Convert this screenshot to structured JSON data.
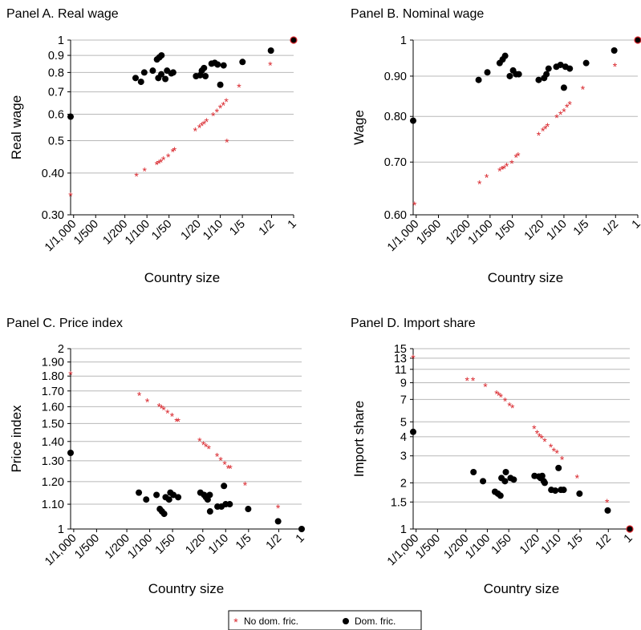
{
  "legend": [
    {
      "key": "nodom",
      "label": "No dom. fric.",
      "color": "#d9262c",
      "marker": "asterisk"
    },
    {
      "key": "dom",
      "label": "Dom. fric.",
      "color": "#000000",
      "marker": "dot"
    }
  ],
  "chart_data": [
    {
      "type": "scatter",
      "title": "Panel A. Real wage",
      "xlabel": "Country size",
      "ylabel": "Real wage",
      "xscale": "log",
      "yscale": "log",
      "xlim": [
        0.00091,
        1
      ],
      "ylim": [
        0.3,
        1
      ],
      "x_ticks": [
        0.001,
        0.002,
        0.005,
        0.01,
        0.02,
        0.05,
        0.1,
        0.2,
        0.5,
        1
      ],
      "x_tick_labels": [
        "1/1,000",
        "1/500",
        "1/200",
        "1/100",
        "1/50",
        "1/20",
        "1/10",
        "1/5",
        "1/2",
        "1"
      ],
      "y_ticks": [
        0.3,
        0.4,
        0.5,
        0.6,
        0.7,
        0.8,
        0.9,
        1
      ],
      "y_tick_labels": [
        "0.30",
        "0.40",
        "0.5",
        "0.6",
        "0.7",
        "0.8",
        "0.9",
        "1"
      ],
      "grid": "horizontal",
      "series": [
        {
          "name": "No dom. fric.",
          "key": "nodom",
          "points": [
            [
              0.00091,
              0.345
            ],
            [
              0.0072,
              0.395
            ],
            [
              0.0093,
              0.41
            ],
            [
              0.0136,
              0.428
            ],
            [
              0.0145,
              0.432
            ],
            [
              0.0155,
              0.436
            ],
            [
              0.0168,
              0.443
            ],
            [
              0.0195,
              0.452
            ],
            [
              0.0225,
              0.468
            ],
            [
              0.0237,
              0.472
            ],
            [
              0.0455,
              0.54
            ],
            [
              0.052,
              0.553
            ],
            [
              0.056,
              0.56
            ],
            [
              0.06,
              0.566
            ],
            [
              0.065,
              0.575
            ],
            [
              0.08,
              0.6
            ],
            [
              0.09,
              0.615
            ],
            [
              0.1,
              0.632
            ],
            [
              0.11,
              0.645
            ],
            [
              0.121,
              0.66
            ],
            [
              0.123,
              0.5
            ],
            [
              0.18,
              0.73
            ],
            [
              0.48,
              0.85
            ]
          ]
        },
        {
          "name": "Dom. fric.",
          "key": "dom",
          "points": [
            [
              0.00091,
              0.59
            ],
            [
              0.007,
              0.77
            ],
            [
              0.0083,
              0.75
            ],
            [
              0.0092,
              0.8
            ],
            [
              0.012,
              0.81
            ],
            [
              0.0137,
              0.875
            ],
            [
              0.0148,
              0.888
            ],
            [
              0.0158,
              0.9
            ],
            [
              0.0143,
              0.77
            ],
            [
              0.0157,
              0.79
            ],
            [
              0.0178,
              0.765
            ],
            [
              0.0188,
              0.81
            ],
            [
              0.0215,
              0.795
            ],
            [
              0.0228,
              0.8
            ],
            [
              0.0467,
              0.78
            ],
            [
              0.0532,
              0.785
            ],
            [
              0.056,
              0.81
            ],
            [
              0.06,
              0.825
            ],
            [
              0.0627,
              0.78
            ],
            [
              0.076,
              0.85
            ],
            [
              0.084,
              0.855
            ],
            [
              0.092,
              0.845
            ],
            [
              0.1,
              0.735
            ],
            [
              0.111,
              0.84
            ],
            [
              0.201,
              0.86
            ],
            [
              0.49,
              0.93
            ],
            [
              1.0,
              1.0
            ]
          ]
        }
      ]
    },
    {
      "type": "scatter",
      "title": "Panel B. Nominal wage",
      "xlabel": "Country size",
      "ylabel": "Wage",
      "xscale": "log",
      "yscale": "log",
      "xlim": [
        0.00091,
        1
      ],
      "ylim": [
        0.6,
        1
      ],
      "x_ticks": [
        0.001,
        0.002,
        0.005,
        0.01,
        0.02,
        0.05,
        0.1,
        0.2,
        0.5,
        1
      ],
      "x_tick_labels": [
        "1/1,000",
        "1/500",
        "1/200",
        "1/100",
        "1/50",
        "1/20",
        "1/10",
        "1/5",
        "1/2",
        "1"
      ],
      "y_ticks": [
        0.6,
        0.7,
        0.8,
        0.9,
        1
      ],
      "y_tick_labels": [
        "0.60",
        "0.70",
        "0.80",
        "0.90",
        "1"
      ],
      "grid": "horizontal",
      "series": [
        {
          "name": "No dom. fric.",
          "key": "nodom",
          "points": [
            [
              0.00095,
              0.62
            ],
            [
              0.0072,
              0.66
            ],
            [
              0.009,
              0.672
            ],
            [
              0.0135,
              0.685
            ],
            [
              0.0145,
              0.688
            ],
            [
              0.0155,
              0.69
            ],
            [
              0.0168,
              0.695
            ],
            [
              0.0197,
              0.7
            ],
            [
              0.0225,
              0.713
            ],
            [
              0.024,
              0.716
            ],
            [
              0.0455,
              0.76
            ],
            [
              0.052,
              0.77
            ],
            [
              0.056,
              0.775
            ],
            [
              0.06,
              0.78
            ],
            [
              0.08,
              0.8
            ],
            [
              0.09,
              0.808
            ],
            [
              0.1,
              0.815
            ],
            [
              0.11,
              0.825
            ],
            [
              0.12,
              0.832
            ],
            [
              0.18,
              0.87
            ],
            [
              0.49,
              0.93
            ]
          ]
        },
        {
          "name": "Dom. fric.",
          "key": "dom",
          "points": [
            [
              0.00091,
              0.79
            ],
            [
              0.007,
              0.89
            ],
            [
              0.0092,
              0.91
            ],
            [
              0.0135,
              0.935
            ],
            [
              0.0148,
              0.945
            ],
            [
              0.016,
              0.955
            ],
            [
              0.0185,
              0.9
            ],
            [
              0.0205,
              0.915
            ],
            [
              0.0225,
              0.905
            ],
            [
              0.0245,
              0.905
            ],
            [
              0.0455,
              0.89
            ],
            [
              0.054,
              0.895
            ],
            [
              0.058,
              0.905
            ],
            [
              0.062,
              0.92
            ],
            [
              0.079,
              0.925
            ],
            [
              0.09,
              0.93
            ],
            [
              0.1,
              0.87
            ],
            [
              0.105,
              0.925
            ],
            [
              0.12,
              0.92
            ],
            [
              0.2,
              0.935
            ],
            [
              0.48,
              0.97
            ],
            [
              1.0,
              1.0
            ]
          ]
        }
      ]
    },
    {
      "type": "scatter",
      "title": "Panel C. Price index",
      "xlabel": "Country size",
      "ylabel": "Price index",
      "xscale": "log",
      "yscale": "log",
      "xlim": [
        0.00091,
        1
      ],
      "ylim": [
        1,
        2
      ],
      "x_ticks": [
        0.001,
        0.002,
        0.005,
        0.01,
        0.02,
        0.05,
        0.1,
        0.2,
        0.5,
        1
      ],
      "x_tick_labels": [
        "1/1,000",
        "1/500",
        "1/200",
        "1/100",
        "1/50",
        "1/20",
        "1/10",
        "1/5",
        "1/2",
        "1"
      ],
      "y_ticks": [
        1,
        1.1,
        1.2,
        1.3,
        1.4,
        1.5,
        1.6,
        1.7,
        1.8,
        1.9,
        2
      ],
      "y_tick_labels": [
        "1",
        "1.10",
        "1.20",
        "1.30",
        "1.40",
        "1.50",
        "1.60",
        "1.70",
        "1.80",
        "1.90",
        "2"
      ],
      "grid": "horizontal",
      "series": [
        {
          "name": "No dom. fric.",
          "key": "nodom",
          "points": [
            [
              0.00091,
              1.82
            ],
            [
              0.0073,
              1.68
            ],
            [
              0.0093,
              1.64
            ],
            [
              0.0133,
              1.61
            ],
            [
              0.0143,
              1.6
            ],
            [
              0.0153,
              1.59
            ],
            [
              0.0172,
              1.57
            ],
            [
              0.0197,
              1.55
            ],
            [
              0.0225,
              1.52
            ],
            [
              0.0238,
              1.52
            ],
            [
              0.0455,
              1.41
            ],
            [
              0.051,
              1.39
            ],
            [
              0.055,
              1.38
            ],
            [
              0.06,
              1.37
            ],
            [
              0.077,
              1.33
            ],
            [
              0.086,
              1.31
            ],
            [
              0.097,
              1.29
            ],
            [
              0.108,
              1.27
            ],
            [
              0.115,
              1.27
            ],
            [
              0.18,
              1.19
            ],
            [
              0.49,
              1.09
            ]
          ]
        },
        {
          "name": "Dom. fric.",
          "key": "dom",
          "points": [
            [
              0.00091,
              1.34
            ],
            [
              0.0072,
              1.15
            ],
            [
              0.009,
              1.12
            ],
            [
              0.0123,
              1.14
            ],
            [
              0.0136,
              1.08
            ],
            [
              0.0145,
              1.07
            ],
            [
              0.0155,
              1.06
            ],
            [
              0.0162,
              1.13
            ],
            [
              0.018,
              1.12
            ],
            [
              0.0187,
              1.15
            ],
            [
              0.0205,
              1.14
            ],
            [
              0.0237,
              1.13
            ],
            [
              0.0465,
              1.15
            ],
            [
              0.052,
              1.14
            ],
            [
              0.055,
              1.13
            ],
            [
              0.058,
              1.12
            ],
            [
              0.0617,
              1.14
            ],
            [
              0.0623,
              1.07
            ],
            [
              0.078,
              1.09
            ],
            [
              0.088,
              1.09
            ],
            [
              0.095,
              1.18
            ],
            [
              0.1,
              1.1
            ],
            [
              0.113,
              1.1
            ],
            [
              0.198,
              1.08
            ],
            [
              0.49,
              1.03
            ],
            [
              1.0,
              1.0
            ]
          ]
        }
      ]
    },
    {
      "type": "scatter",
      "title": "Panel D. Import share",
      "xlabel": "Country size",
      "ylabel": "Import share",
      "xscale": "log",
      "yscale": "log",
      "xlim": [
        0.00091,
        1
      ],
      "ylim": [
        1,
        15
      ],
      "x_ticks": [
        0.001,
        0.002,
        0.005,
        0.01,
        0.02,
        0.05,
        0.1,
        0.2,
        0.5,
        1
      ],
      "x_tick_labels": [
        "1/1,000",
        "1/500",
        "1/200",
        "1/100",
        "1/50",
        "1/20",
        "1/10",
        "1/5",
        "1/2",
        "1"
      ],
      "y_ticks": [
        1,
        1.5,
        2,
        3,
        4,
        5,
        7,
        9,
        11,
        13,
        15
      ],
      "y_tick_labels": [
        "1",
        "1.5",
        "2",
        "3",
        "4",
        "5",
        "7",
        "9",
        "11",
        "13",
        "15"
      ],
      "grid": "horizontal",
      "series": [
        {
          "name": "No dom. fric.",
          "key": "nodom",
          "points": [
            [
              0.00091,
              13.3
            ],
            [
              0.0052,
              9.5
            ],
            [
              0.0063,
              9.5
            ],
            [
              0.0094,
              8.7
            ],
            [
              0.0135,
              7.8
            ],
            [
              0.0145,
              7.6
            ],
            [
              0.0155,
              7.4
            ],
            [
              0.0178,
              7.0
            ],
            [
              0.0205,
              6.5
            ],
            [
              0.0225,
              6.3
            ],
            [
              0.0455,
              4.6
            ],
            [
              0.05,
              4.3
            ],
            [
              0.054,
              4.1
            ],
            [
              0.058,
              4.0
            ],
            [
              0.064,
              3.8
            ],
            [
              0.078,
              3.5
            ],
            [
              0.086,
              3.3
            ],
            [
              0.095,
              3.2
            ],
            [
              0.112,
              2.9
            ],
            [
              0.182,
              2.2
            ],
            [
              0.48,
              1.52
            ]
          ]
        },
        {
          "name": "Dom. fric.",
          "key": "dom",
          "points": [
            [
              0.00091,
              4.3
            ],
            [
              0.0064,
              2.35
            ],
            [
              0.0087,
              2.05
            ],
            [
              0.0128,
              1.75
            ],
            [
              0.0141,
              1.7
            ],
            [
              0.0153,
              1.65
            ],
            [
              0.0158,
              2.15
            ],
            [
              0.0177,
              2.05
            ],
            [
              0.0182,
              2.35
            ],
            [
              0.0212,
              2.15
            ],
            [
              0.0235,
              2.1
            ],
            [
              0.046,
              2.22
            ],
            [
              0.053,
              2.2
            ],
            [
              0.056,
              2.15
            ],
            [
              0.059,
              2.22
            ],
            [
              0.062,
              2.05
            ],
            [
              0.064,
              2.0
            ],
            [
              0.079,
              1.8
            ],
            [
              0.09,
              1.78
            ],
            [
              0.1,
              2.5
            ],
            [
              0.108,
              1.8
            ],
            [
              0.118,
              1.8
            ],
            [
              0.197,
              1.7
            ],
            [
              0.49,
              1.32
            ],
            [
              1.0,
              1.0
            ]
          ]
        }
      ]
    }
  ]
}
